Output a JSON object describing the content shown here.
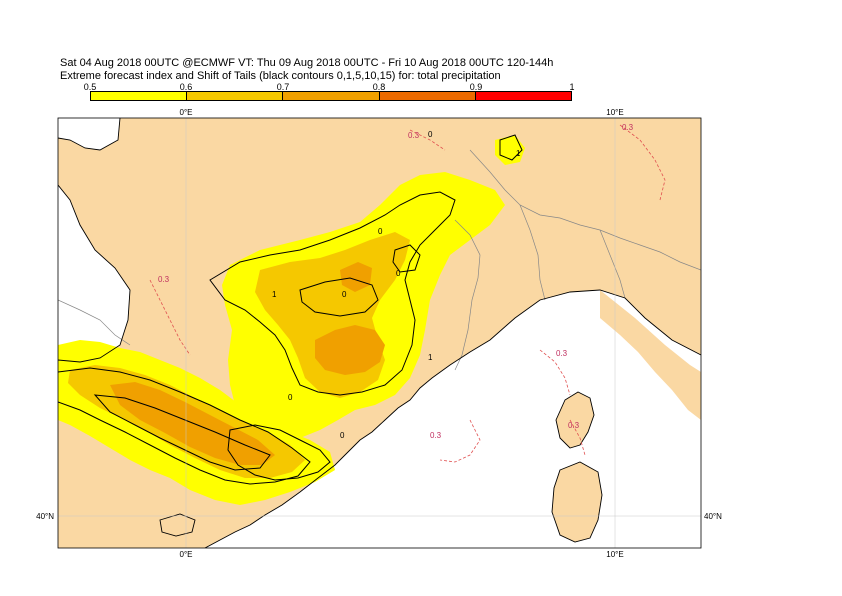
{
  "title_line1": "Sat 04 Aug 2018 00UTC @ECMWF VT: Thu 09 Aug 2018 00UTC - Fri 10 Aug 2018 00UTC  120-144h",
  "title_line2": "Extreme forecast index and Shift of Tails (black contours 0,1,5,10,15) for: total precipitation",
  "colorbar": {
    "ticks": [
      "0.5",
      "0.6",
      "0.7",
      "0.8",
      "0.9",
      "1"
    ],
    "colors": [
      "#ffff00",
      "#f5c800",
      "#f0a000",
      "#ec6a00",
      "#ff0000"
    ]
  },
  "map": {
    "colors": {
      "land": "#fad8a3",
      "sea": "#ffffff",
      "efi_05": "#ffff00",
      "efi_06": "#f5c800",
      "efi_07": "#f0a000",
      "contour": "#000000",
      "efi_dashed": "#e05050"
    },
    "lon_labels": {
      "top": "0°E",
      "top2": "10°E",
      "bottom": "0°E",
      "bottom2": "10°E"
    },
    "lat_labels": {
      "left": "40°N",
      "right": "40°N"
    },
    "contour_labels": [
      "0",
      "0",
      "1",
      "0",
      "1",
      "1",
      "0",
      "0",
      "0"
    ],
    "efi_labels": [
      "0.3",
      "0.3",
      "0.3",
      "0.3",
      "0.3",
      "0.3"
    ]
  }
}
